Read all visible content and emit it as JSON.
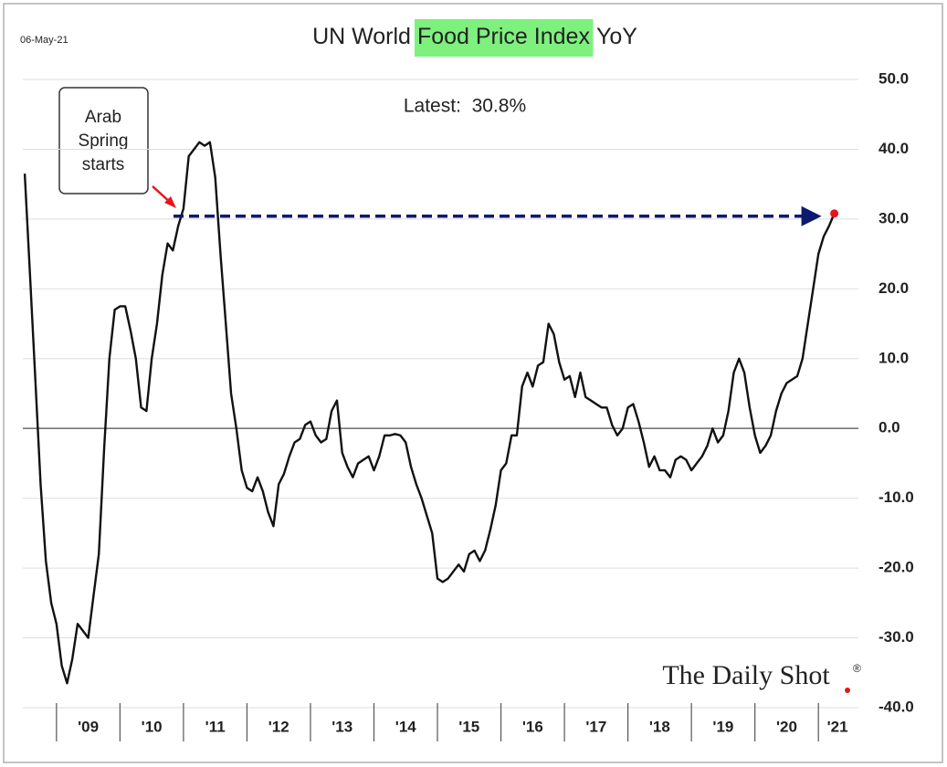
{
  "chart_data": {
    "type": "line",
    "date": "06-May-21",
    "title_parts": [
      "UN World",
      "Food Price Index",
      "YoY"
    ],
    "latest_text": "Latest:  30.8%",
    "annotation_lines": [
      "Arab",
      "Spring",
      "starts"
    ],
    "source": "The Daily Shot",
    "source_mark": "®",
    "series": [
      {
        "name": "UN World Food Price Index YoY",
        "color": "#111111",
        "x": [
          2008.5,
          2008.583,
          2008.667,
          2008.75,
          2008.833,
          2008.917,
          2009,
          2009.083,
          2009.167,
          2009.25,
          2009.333,
          2009.417,
          2009.5,
          2009.583,
          2009.667,
          2009.75,
          2009.833,
          2009.917,
          2010,
          2010.083,
          2010.167,
          2010.25,
          2010.333,
          2010.417,
          2010.5,
          2010.583,
          2010.667,
          2010.75,
          2010.833,
          2010.917,
          2011,
          2011.083,
          2011.167,
          2011.25,
          2011.333,
          2011.417,
          2011.5,
          2011.583,
          2011.667,
          2011.75,
          2011.833,
          2011.917,
          2012,
          2012.083,
          2012.167,
          2012.25,
          2012.333,
          2012.417,
          2012.5,
          2012.583,
          2012.667,
          2012.75,
          2012.833,
          2012.917,
          2013,
          2013.083,
          2013.167,
          2013.25,
          2013.333,
          2013.417,
          2013.5,
          2013.583,
          2013.667,
          2013.75,
          2013.833,
          2013.917,
          2014,
          2014.083,
          2014.167,
          2014.25,
          2014.333,
          2014.417,
          2014.5,
          2014.583,
          2014.667,
          2014.75,
          2014.833,
          2014.917,
          2015,
          2015.083,
          2015.167,
          2015.25,
          2015.333,
          2015.417,
          2015.5,
          2015.583,
          2015.667,
          2015.75,
          2015.833,
          2015.917,
          2016,
          2016.083,
          2016.167,
          2016.25,
          2016.333,
          2016.417,
          2016.5,
          2016.583,
          2016.667,
          2016.75,
          2016.833,
          2016.917,
          2017,
          2017.083,
          2017.167,
          2017.25,
          2017.333,
          2017.417,
          2017.5,
          2017.583,
          2017.667,
          2017.75,
          2017.833,
          2017.917,
          2018,
          2018.083,
          2018.167,
          2018.25,
          2018.333,
          2018.417,
          2018.5,
          2018.583,
          2018.667,
          2018.75,
          2018.833,
          2018.917,
          2019,
          2019.083,
          2019.167,
          2019.25,
          2019.333,
          2019.417,
          2019.5,
          2019.583,
          2019.667,
          2019.75,
          2019.833,
          2019.917,
          2020,
          2020.083,
          2020.167,
          2020.25,
          2020.333,
          2020.417,
          2020.5,
          2020.583,
          2020.667,
          2020.75,
          2020.833,
          2020.917,
          2021,
          2021.083,
          2021.167,
          2021.25
        ],
        "values": [
          36.5,
          22,
          7,
          -8,
          -19,
          -25,
          -28,
          -34,
          -36.5,
          -33,
          -28,
          -29,
          -30,
          -24,
          -18,
          -3,
          10,
          17,
          17.5,
          17.5,
          14,
          10,
          3,
          2.5,
          10,
          15,
          22,
          26.5,
          25.5,
          29,
          31.5,
          39,
          40,
          41,
          40.5,
          41,
          36,
          25,
          15,
          5,
          0,
          -6,
          -8.5,
          -9,
          -7,
          -9,
          -12,
          -14,
          -8,
          -6.5,
          -4,
          -2,
          -1.5,
          0.5,
          1,
          -1,
          -2,
          -1.5,
          2.5,
          4,
          -3.5,
          -5.5,
          -7,
          -5,
          -4.5,
          -4,
          -6,
          -4,
          -1,
          -1,
          -0.8,
          -1,
          -2,
          -5.5,
          -8,
          -10,
          -12.5,
          -15,
          -21.5,
          -22,
          -21.5,
          -20.5,
          -19.5,
          -20.5,
          -18,
          -17.5,
          -19,
          -17.5,
          -14.5,
          -11,
          -6,
          -5,
          -1,
          -1,
          6,
          8,
          6,
          9,
          9.5,
          15,
          13.5,
          9.5,
          7,
          7.5,
          4.5,
          8,
          4.5,
          4,
          3.5,
          3,
          3,
          0.5,
          -1,
          0,
          3,
          3.5,
          1,
          -2,
          -5.5,
          -4,
          -6,
          -6,
          -7,
          -4.5,
          -4,
          -4.5,
          -6,
          -5,
          -4,
          -2.5,
          0,
          -2,
          -1,
          2.5,
          8,
          10,
          8,
          3,
          -1,
          -3.5,
          -2.5,
          -1,
          2.5,
          5,
          6.5,
          7,
          7.5,
          10,
          15,
          20,
          25,
          27.5,
          29,
          30.8
        ]
      }
    ],
    "xlim": [
      2008.47,
      2021.63
    ],
    "xticks": [
      {
        "value": 2009.5,
        "label": "'09"
      },
      {
        "value": 2010.5,
        "label": "'10"
      },
      {
        "value": 2011.5,
        "label": "'11"
      },
      {
        "value": 2012.5,
        "label": "'12"
      },
      {
        "value": 2013.5,
        "label": "'13"
      },
      {
        "value": 2014.5,
        "label": "'14"
      },
      {
        "value": 2015.5,
        "label": "'15"
      },
      {
        "value": 2016.5,
        "label": "'16"
      },
      {
        "value": 2017.5,
        "label": "'17"
      },
      {
        "value": 2018.5,
        "label": "'18"
      },
      {
        "value": 2019.5,
        "label": "'19"
      },
      {
        "value": 2020.5,
        "label": "'20"
      },
      {
        "value": 2021.3,
        "label": "'21"
      }
    ],
    "ylim": [
      -40,
      50
    ],
    "yticks": [
      {
        "value": -40,
        "label": "-40.0"
      },
      {
        "value": -30,
        "label": "-30.0"
      },
      {
        "value": -20,
        "label": "-20.0"
      },
      {
        "value": -10,
        "label": "-10.0"
      },
      {
        "value": 0,
        "label": "0.0"
      },
      {
        "value": 10,
        "label": "10.0"
      },
      {
        "value": 20,
        "label": "20.0"
      },
      {
        "value": 30,
        "label": "30.0"
      },
      {
        "value": 40,
        "label": "40.0"
      },
      {
        "value": 50,
        "label": "50.0"
      }
    ],
    "grid": true,
    "highlight_color": "#7ef07e",
    "marker_color": "#e8141b",
    "arrow_color": "#0b1a6e"
  }
}
